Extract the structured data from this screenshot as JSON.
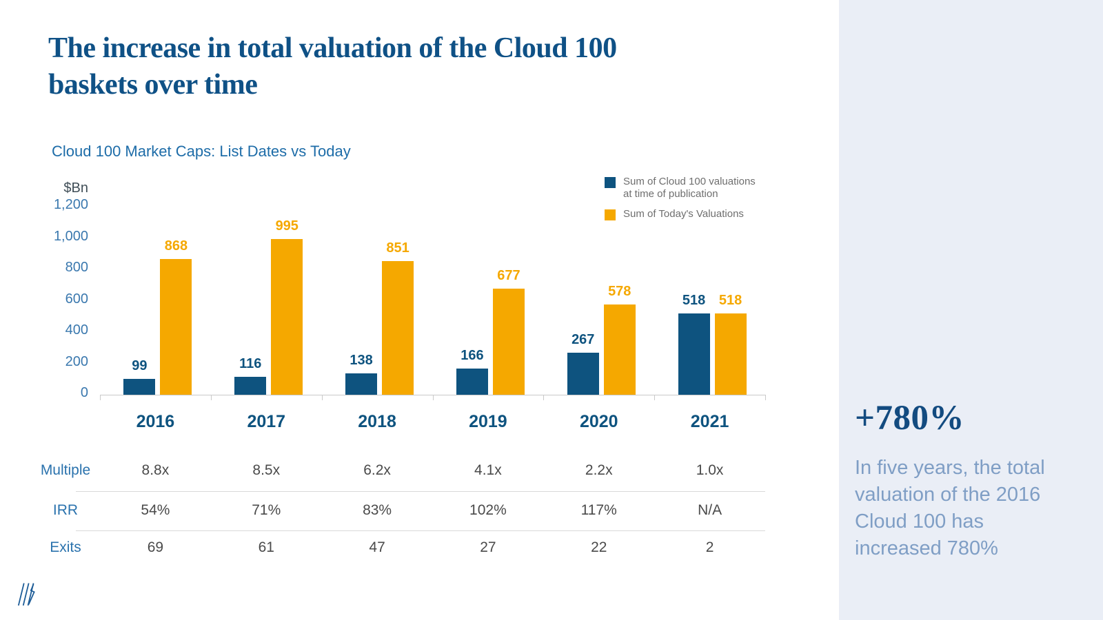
{
  "header": {
    "title": "The increase in total valuation of the Cloud 100 baskets over time"
  },
  "chart_data": {
    "type": "bar",
    "title": "Cloud 100 Market Caps: List Dates vs Today",
    "unit_label": "$Bn",
    "ylabel": "$Bn",
    "xlabel": "",
    "categories": [
      "2016",
      "2017",
      "2018",
      "2019",
      "2020",
      "2021"
    ],
    "series": [
      {
        "name": "Sum of Cloud 100 valuations at time of publication",
        "color": "#0e537f",
        "values": [
          99,
          116,
          138,
          166,
          267,
          518
        ]
      },
      {
        "name": "Sum of Today's Valuations",
        "color": "#f5a800",
        "values": [
          868,
          995,
          851,
          677,
          578,
          518
        ]
      }
    ],
    "ylim": [
      0,
      1200
    ],
    "ytick_values": [
      0,
      200,
      400,
      600,
      800,
      1000,
      1200
    ],
    "ytick_labels": [
      "0",
      "200",
      "400",
      "600",
      "800",
      "1,000",
      "1,200"
    ],
    "grid": false,
    "legend_position": "top-right"
  },
  "table": {
    "rows": [
      {
        "label": "Multiple",
        "values": [
          "8.8x",
          "8.5x",
          "6.2x",
          "4.1x",
          "2.2x",
          "1.0x"
        ]
      },
      {
        "label": "IRR",
        "values": [
          "54%",
          "71%",
          "83%",
          "102%",
          "117%",
          "N/A"
        ]
      },
      {
        "label": "Exits",
        "values": [
          "69",
          "61",
          "47",
          "27",
          "22",
          "2"
        ]
      }
    ]
  },
  "sidebar": {
    "stat": "+780%",
    "description": "In five years, the total valuation of the 2016 Cloud 100 has increased 780%"
  },
  "icons": {
    "logo": "slash-mark-logo"
  },
  "colors": {
    "title_blue": "#0f5186",
    "bar_blue": "#0e537f",
    "accent_orange": "#f5a800",
    "label_blue": "#2a72ad",
    "tick_blue": "#3a78ae",
    "value_gray": "#4a4a4a",
    "legend_gray": "#6e6e6e",
    "axis_gray": "#c9c9c9",
    "sidebar_bg": "#eaeef6",
    "sidebar_text": "#7f9ec5"
  }
}
